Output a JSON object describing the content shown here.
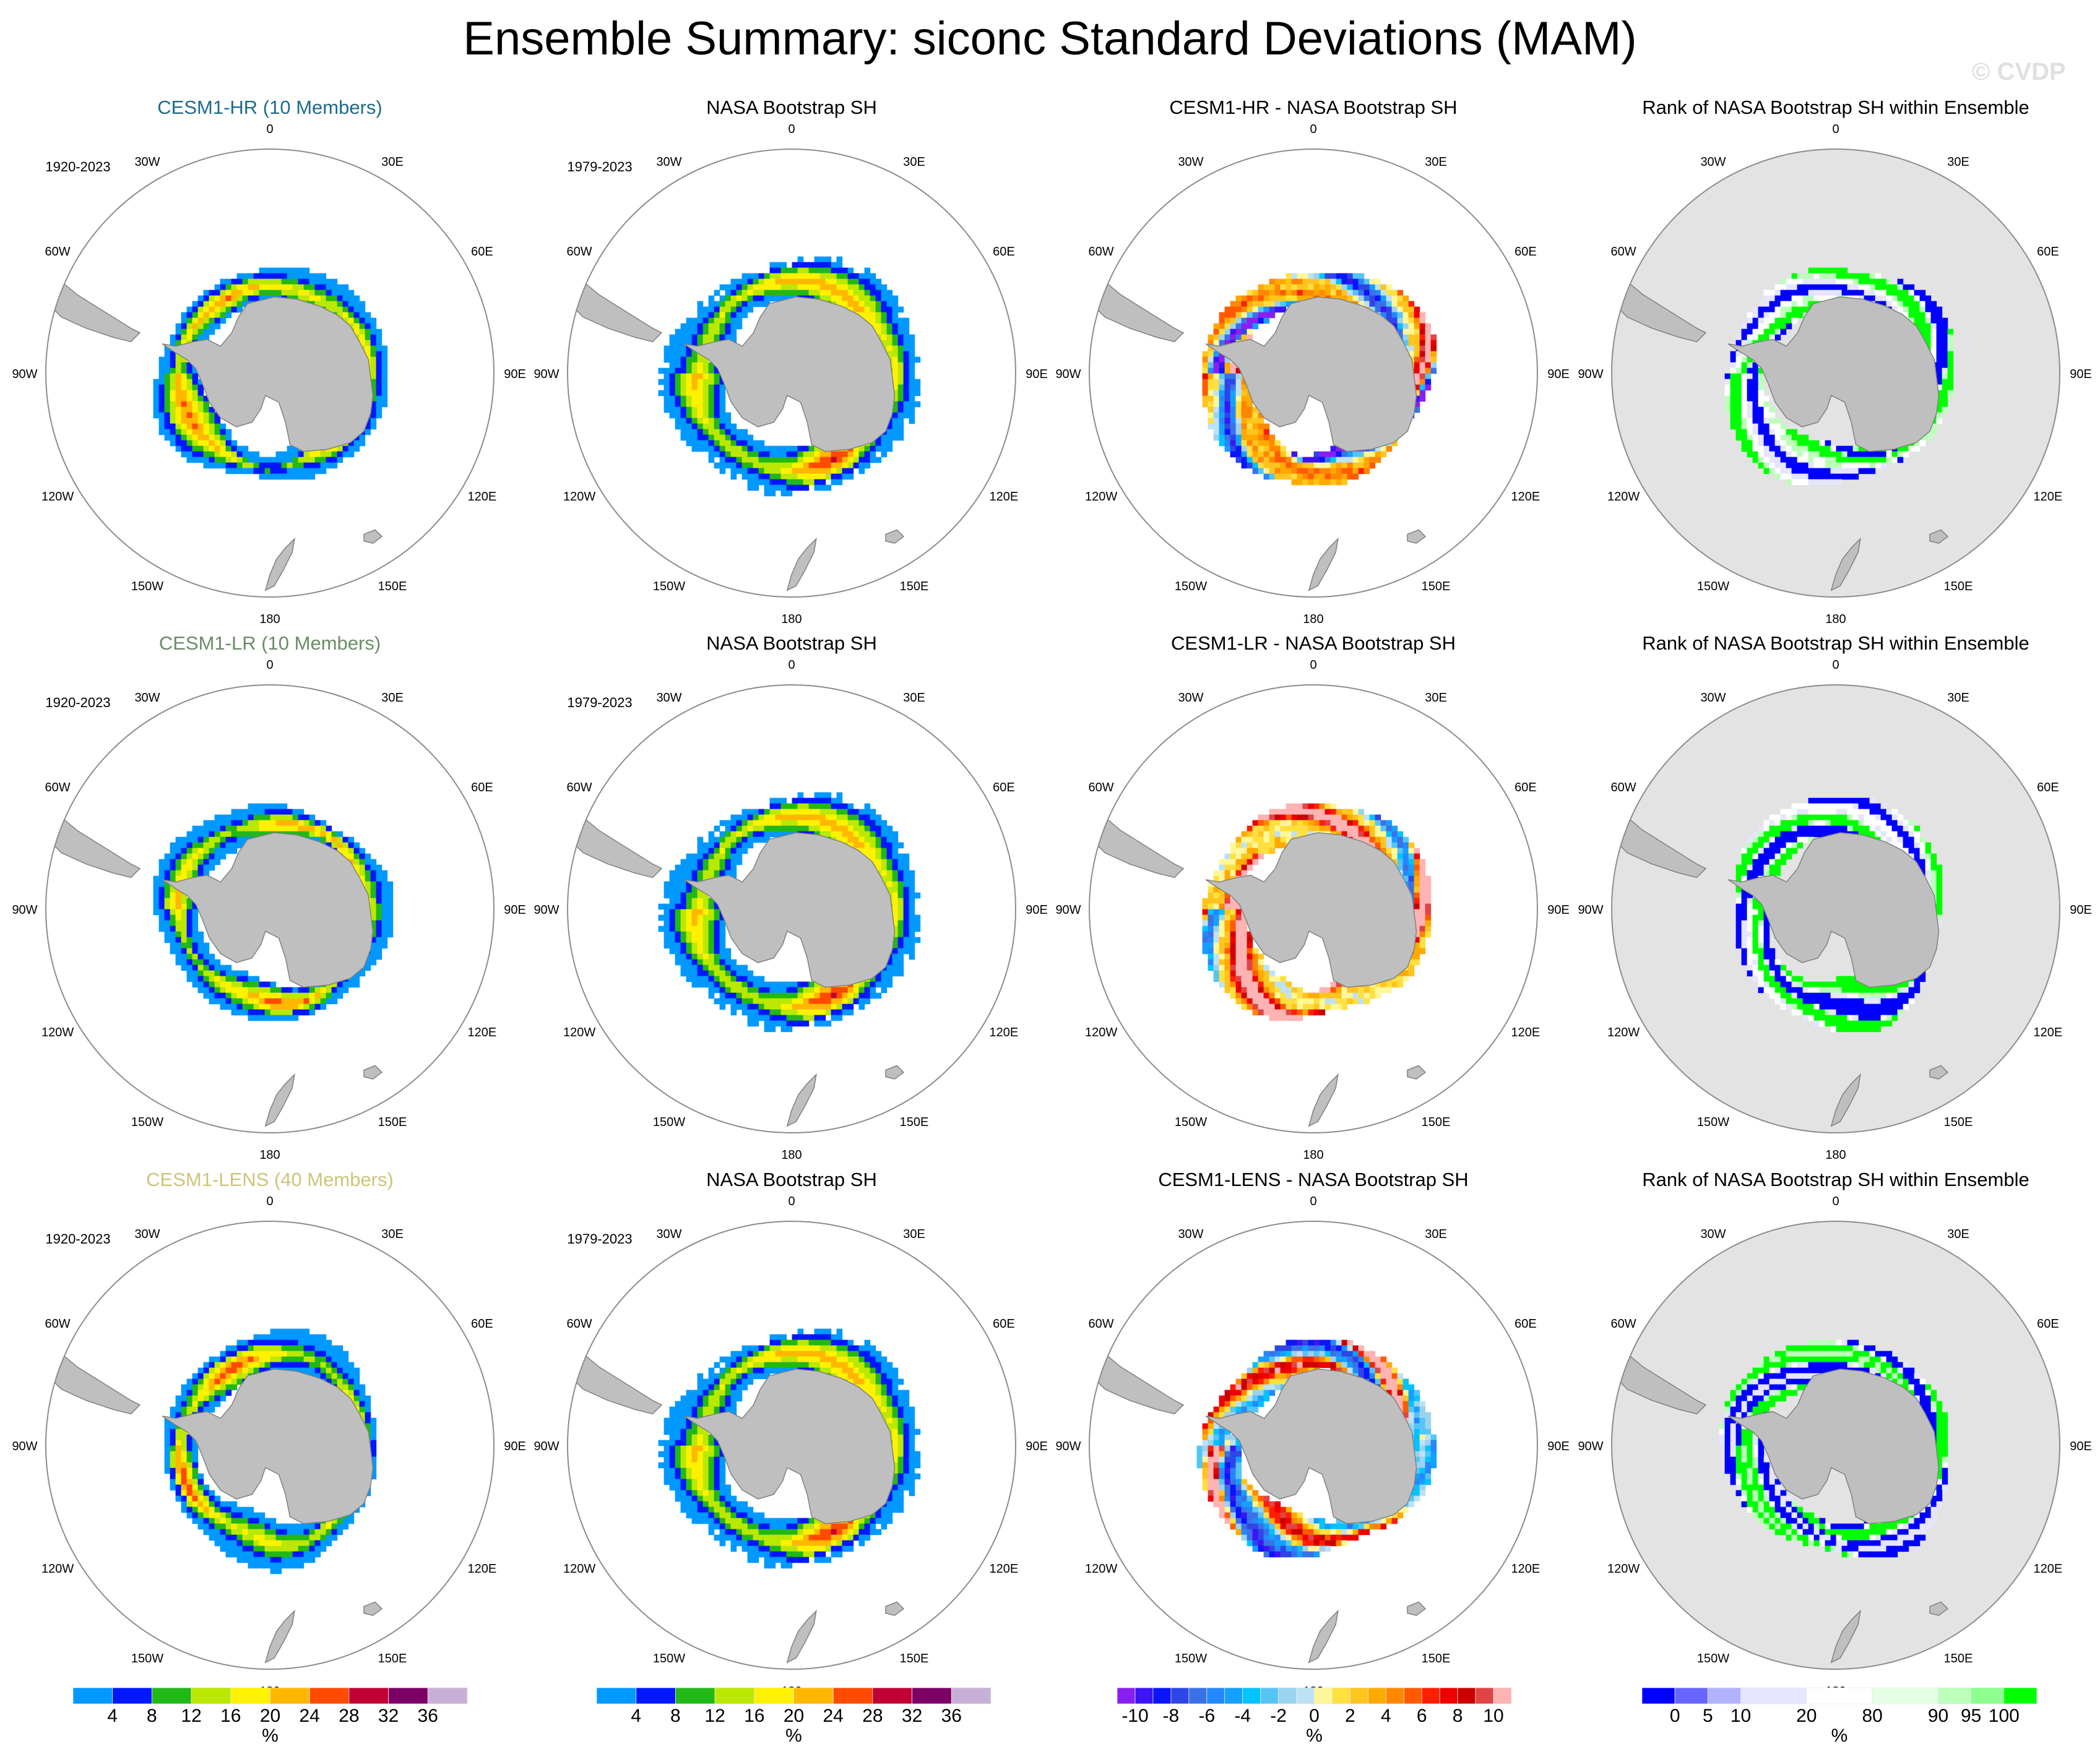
{
  "figure": {
    "title": "Ensemble Summary: siconc Standard Deviations (MAM)",
    "watermark": "© CVDP"
  },
  "chart_data": {
    "type": "heatmap",
    "projection": "south-polar-stereographic",
    "title": "Ensemble Summary: siconc Standard Deviations (MAM)",
    "longitude_labels": [
      "0",
      "30E",
      "60E",
      "90E",
      "120E",
      "150E",
      "180",
      "150W",
      "120W",
      "90W",
      "60W",
      "30W"
    ],
    "colorbars": [
      {
        "id": "std",
        "units": "%",
        "tick_labels": [
          "4",
          "8",
          "12",
          "16",
          "20",
          "24",
          "28",
          "32",
          "36"
        ],
        "levels": [
          4,
          8,
          12,
          16,
          20,
          24,
          28,
          32,
          36
        ],
        "colors": [
          "#0099ff",
          "#0017ff",
          "#22b816",
          "#bbe800",
          "#fff200",
          "#ffb700",
          "#ff4a00",
          "#c10033",
          "#7d0066",
          "#c8afd8"
        ]
      },
      {
        "id": "std-copy",
        "units": "%",
        "tick_labels": [
          "4",
          "8",
          "12",
          "16",
          "20",
          "24",
          "28",
          "32",
          "36"
        ],
        "levels": [
          4,
          8,
          12,
          16,
          20,
          24,
          28,
          32,
          36
        ],
        "colors": [
          "#0099ff",
          "#0017ff",
          "#22b816",
          "#bbe800",
          "#fff200",
          "#ffb700",
          "#ff4a00",
          "#c10033",
          "#7d0066",
          "#c8afd8"
        ]
      },
      {
        "id": "diff",
        "units": "%",
        "tick_labels": [
          "-10",
          "-8",
          "-6",
          "-4",
          "-2",
          "0",
          "2",
          "4",
          "6",
          "8",
          "10"
        ],
        "levels": [
          -10,
          -9,
          -8,
          -7,
          -6,
          -5,
          -4,
          -3,
          -2,
          -1,
          0,
          1,
          2,
          3,
          4,
          5,
          6,
          7,
          8,
          9,
          10
        ],
        "colors": [
          "#8a1ef0",
          "#3c14f5",
          "#0a14ff",
          "#2e46e6",
          "#3a72e6",
          "#2488ff",
          "#14a0ff",
          "#00c3ff",
          "#55c5f5",
          "#9ad3f0",
          "#bde2f5",
          "#fff799",
          "#ffe040",
          "#ffc51e",
          "#ffaa00",
          "#ff8800",
          "#ff5a00",
          "#ff1e00",
          "#ee0000",
          "#cc0000",
          "#e04444",
          "#ffb3b3"
        ]
      },
      {
        "id": "rank",
        "units": "%",
        "tick_labels": [
          "0",
          "5",
          "10",
          "20",
          "80",
          "90",
          "95",
          "100"
        ],
        "levels": [
          0,
          5,
          10,
          20,
          80,
          90,
          95,
          100
        ],
        "colors": [
          "#0000ff",
          "#6666ff",
          "#b2b2ff",
          "#e5e5ff",
          "#ffffff",
          "#e5ffe5",
          "#bbffbb",
          "#8cff8c",
          "#00ff00"
        ],
        "box_weights": [
          1,
          1,
          1,
          2,
          2,
          2,
          1,
          1,
          1
        ]
      }
    ],
    "panels": [
      {
        "row": 0,
        "col": 0,
        "title": "CESM1-HR (10 Members)",
        "title_color": "#1d6b8c",
        "period": "1920-2023",
        "field": "std",
        "colorbar": "std",
        "ocean_fill": "none",
        "variant": 0
      },
      {
        "row": 0,
        "col": 1,
        "title": "NASA Bootstrap SH",
        "title_color": "#000000",
        "period": "1979-2023",
        "field": "std",
        "colorbar": "std",
        "ocean_fill": "none",
        "variant": 1
      },
      {
        "row": 0,
        "col": 2,
        "title": "CESM1-HR - NASA Bootstrap SH",
        "title_color": "#000000",
        "period": "",
        "field": "diff",
        "colorbar": "diff",
        "ocean_fill": "none",
        "variant": 2
      },
      {
        "row": 0,
        "col": 3,
        "title": "Rank of NASA Bootstrap SH within Ensemble",
        "title_color": "#000000",
        "period": "",
        "field": "rank",
        "colorbar": "rank",
        "ocean_fill": "#e3e3e3",
        "variant": 3
      },
      {
        "row": 1,
        "col": 0,
        "title": "CESM1-LR (10 Members)",
        "title_color": "#6a8c66",
        "period": "1920-2023",
        "field": "std",
        "colorbar": "std",
        "ocean_fill": "none",
        "variant": 4
      },
      {
        "row": 1,
        "col": 1,
        "title": "NASA Bootstrap SH",
        "title_color": "#000000",
        "period": "1979-2023",
        "field": "std",
        "colorbar": "std",
        "ocean_fill": "none",
        "variant": 1
      },
      {
        "row": 1,
        "col": 2,
        "title": "CESM1-LR - NASA Bootstrap SH",
        "title_color": "#000000",
        "period": "",
        "field": "diff",
        "colorbar": "diff",
        "ocean_fill": "none",
        "variant": 5
      },
      {
        "row": 1,
        "col": 3,
        "title": "Rank of NASA Bootstrap SH within Ensemble",
        "title_color": "#000000",
        "period": "",
        "field": "rank",
        "colorbar": "rank",
        "ocean_fill": "#e3e3e3",
        "variant": 6
      },
      {
        "row": 2,
        "col": 0,
        "title": "CESM1-LENS (40 Members)",
        "title_color": "#cdc47a",
        "period": "1920-2023",
        "field": "std",
        "colorbar": "std",
        "ocean_fill": "none",
        "variant": 7
      },
      {
        "row": 2,
        "col": 1,
        "title": "NASA Bootstrap SH",
        "title_color": "#000000",
        "period": "1979-2023",
        "field": "std",
        "colorbar": "std",
        "ocean_fill": "none",
        "variant": 1
      },
      {
        "row": 2,
        "col": 2,
        "title": "CESM1-LENS - NASA Bootstrap SH",
        "title_color": "#000000",
        "period": "",
        "field": "diff",
        "colorbar": "diff",
        "ocean_fill": "none",
        "variant": 8
      },
      {
        "row": 2,
        "col": 3,
        "title": "Rank of NASA Bootstrap SH within Ensemble",
        "title_color": "#000000",
        "period": "",
        "field": "rank",
        "colorbar": "rank",
        "ocean_fill": "#e3e3e3",
        "variant": 9
      }
    ]
  }
}
